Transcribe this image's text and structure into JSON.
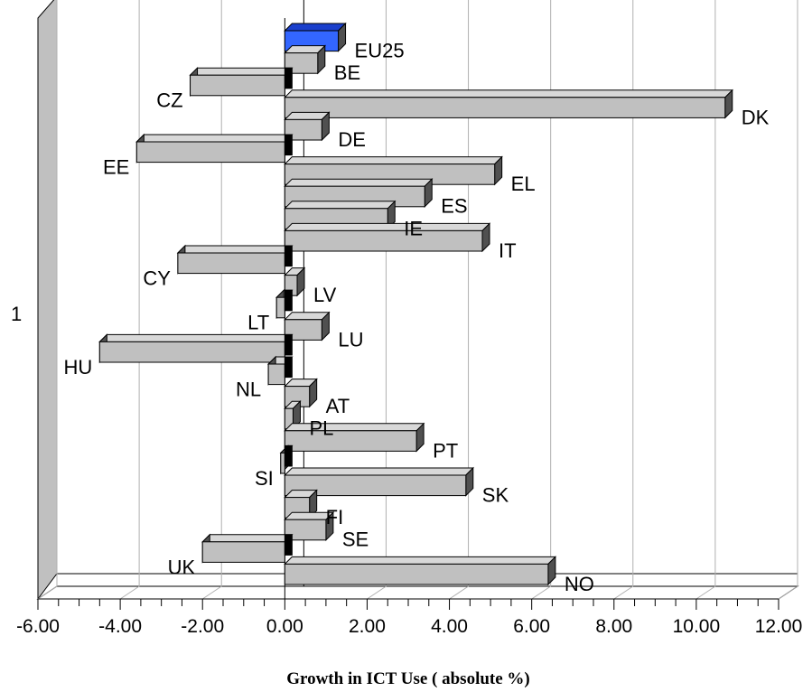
{
  "chart_data": {
    "type": "bar",
    "orientation": "horizontal",
    "xlabel": "Growth in ICT Use  ( absolute %)",
    "y_category_label": "1",
    "xlim": [
      -6,
      12
    ],
    "x_ticks": [
      "-6.00",
      "-4.00",
      "-2.00",
      "0.00",
      "2.00",
      "4.00",
      "6.00",
      "8.00",
      "10.00",
      "12.00"
    ],
    "grid": true,
    "colors": {
      "default": "#c0c0c0",
      "highlight": "#3366ff"
    },
    "highlight": "EU25",
    "categories": [
      "EU25",
      "BE",
      "CZ",
      "DK",
      "DE",
      "EE",
      "EL",
      "ES",
      "IE",
      "IT",
      "CY",
      "LV",
      "LT",
      "LU",
      "HU",
      "NL",
      "AT",
      "PL",
      "PT",
      "SI",
      "SK",
      "FI",
      "SE",
      "UK",
      "NO"
    ],
    "values": [
      1.3,
      0.8,
      -2.3,
      10.7,
      0.9,
      -3.6,
      5.1,
      3.4,
      2.5,
      4.8,
      -2.6,
      0.3,
      -0.2,
      0.9,
      -4.5,
      -0.4,
      0.6,
      0.2,
      3.2,
      -0.1,
      4.4,
      0.6,
      1.0,
      -2.0,
      6.4
    ]
  }
}
